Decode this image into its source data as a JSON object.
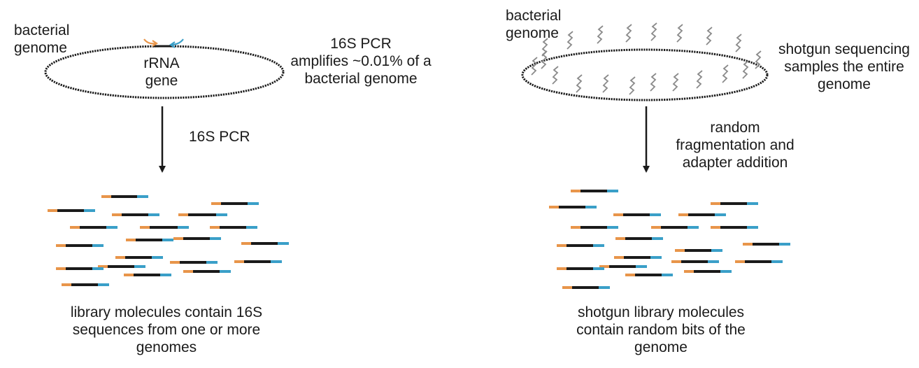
{
  "colors": {
    "orange": "#E8954A",
    "blue": "#3A9FC8",
    "black": "#1a1a1a",
    "zigzag": "#8a8a8a"
  },
  "left": {
    "genome_label": [
      "bacterial",
      "genome"
    ],
    "gene_label": [
      "rRNA",
      "gene"
    ],
    "pcr_note": [
      "16S PCR",
      "amplifies ~0.01% of a",
      "bacterial genome"
    ],
    "arrow_label": "16S PCR",
    "caption": [
      "library molecules contain 16S",
      "sequences from one or more",
      "genomes"
    ]
  },
  "right": {
    "genome_label": [
      "bacterial",
      "genome"
    ],
    "shotgun_note": [
      "shotgun sequencing",
      "samples the entire",
      "genome"
    ],
    "arrow_label": [
      "random",
      "fragmentation and",
      "adapter addition"
    ],
    "caption": [
      "shotgun library molecules",
      "contain random bits of the",
      "genome"
    ]
  }
}
